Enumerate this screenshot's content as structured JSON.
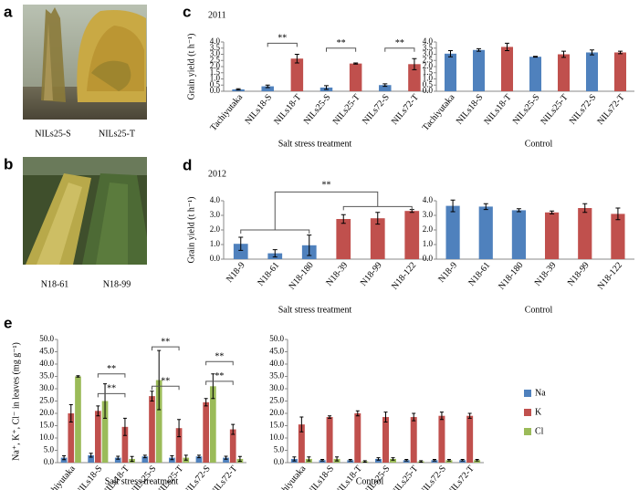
{
  "panels": {
    "a": {
      "label": "a",
      "captions": [
        "NILs25-S",
        "NILs25-T"
      ]
    },
    "b": {
      "label": "b",
      "captions": [
        "N18-61",
        "N18-99"
      ]
    },
    "c": {
      "label": "c"
    },
    "d": {
      "label": "d"
    },
    "e": {
      "label": "e"
    }
  },
  "chart_data": [
    {
      "type": "bar",
      "title": "2011",
      "ylabel": "Grain yield (t h⁻¹)",
      "xlabel": "Salt stress treatment",
      "categories": [
        "Tachiyutaka",
        "NILs18-S",
        "NILs18-T",
        "NILs25-S",
        "NILs25-T",
        "NILs72-S",
        "NILs72-T"
      ],
      "values": [
        0.15,
        0.4,
        2.65,
        0.3,
        2.25,
        0.5,
        2.2
      ],
      "errors": [
        0.05,
        0.1,
        0.35,
        0.15,
        0.05,
        0.1,
        0.45
      ],
      "colors": [
        "#4f81bd",
        "#4f81bd",
        "#c0504d",
        "#4f81bd",
        "#c0504d",
        "#4f81bd",
        "#c0504d"
      ],
      "ylim": [
        0,
        4
      ],
      "yticks": [
        {
          "value": 0,
          "label": "0.0"
        },
        0.5,
        {
          "value": 1,
          "label": "1.0"
        },
        1.5,
        {
          "value": 2,
          "label": "2.0"
        },
        2.5,
        {
          "value": 3,
          "label": "3.0"
        },
        3.5,
        {
          "value": 4,
          "label": "4.0"
        }
      ],
      "annotations": [
        "**",
        "**",
        "**"
      ]
    },
    {
      "type": "bar",
      "xlabel": "Control",
      "categories": [
        "Tachiyutaka",
        "NILs18-S",
        "NILs18-T",
        "NILs25-S",
        "NILs25-T",
        "NILs72-S",
        "NILs72-T"
      ],
      "values": [
        3.05,
        3.35,
        3.6,
        2.8,
        3.0,
        3.15,
        3.15
      ],
      "errors": [
        0.25,
        0.1,
        0.3,
        0.03,
        0.25,
        0.2,
        0.1
      ],
      "colors": [
        "#4f81bd",
        "#4f81bd",
        "#c0504d",
        "#4f81bd",
        "#c0504d",
        "#4f81bd",
        "#c0504d"
      ],
      "ylim": [
        0,
        4
      ],
      "yticks": [
        {
          "value": 0,
          "label": "0.0"
        },
        0.5,
        {
          "value": 1,
          "label": "1.0"
        },
        1.5,
        {
          "value": 2,
          "label": "2.0"
        },
        2.5,
        {
          "value": 3,
          "label": "3.0"
        },
        3.5,
        {
          "value": 4,
          "label": "4.0"
        }
      ]
    },
    {
      "type": "bar",
      "title": "2012",
      "ylabel": "Grain yield (t h⁻¹)",
      "xlabel": "Salt stress treatment",
      "categories": [
        "N18-9",
        "N18-61",
        "N18-180",
        "N18-39",
        "N18-99",
        "N18-122"
      ],
      "values": [
        1.05,
        0.4,
        0.95,
        2.75,
        2.8,
        3.3
      ],
      "errors": [
        0.45,
        0.25,
        0.7,
        0.3,
        0.4,
        0.1
      ],
      "colors": [
        "#4f81bd",
        "#4f81bd",
        "#4f81bd",
        "#c0504d",
        "#c0504d",
        "#c0504d"
      ],
      "ylim": [
        0,
        4
      ],
      "yticks": [
        {
          "value": 0,
          "label": "0.0"
        },
        {
          "value": 1,
          "label": "1.0"
        },
        {
          "value": 2,
          "label": "2.0"
        },
        {
          "value": 3,
          "label": "3.0"
        },
        {
          "value": 4,
          "label": "4.0"
        }
      ],
      "annotations": [
        "**"
      ]
    },
    {
      "type": "bar",
      "xlabel": "Control",
      "categories": [
        "N18-9",
        "N18-61",
        "N18-180",
        "N18-39",
        "N18-99",
        "N18-122"
      ],
      "values": [
        3.65,
        3.6,
        3.35,
        3.2,
        3.5,
        3.1
      ],
      "errors": [
        0.4,
        0.2,
        0.1,
        0.1,
        0.3,
        0.4
      ],
      "colors": [
        "#4f81bd",
        "#4f81bd",
        "#4f81bd",
        "#c0504d",
        "#c0504d",
        "#c0504d"
      ],
      "ylim": [
        0,
        4
      ],
      "yticks": [
        {
          "value": 0,
          "label": "0.0"
        },
        {
          "value": 1,
          "label": "1.0"
        },
        {
          "value": 2,
          "label": "2.0"
        },
        {
          "value": 3,
          "label": "3.0"
        },
        {
          "value": 4,
          "label": "4.0"
        }
      ]
    },
    {
      "type": "bar",
      "ylabel": "Na⁺, K⁺, Cl⁻ in leaves (mg g⁻¹)",
      "xlabel": "Salt stress treatment",
      "categories": [
        "Tachiyutaka",
        "NILs18-S",
        "NILs18-T",
        "NILs25-S",
        "NILs25-T",
        "NILs72-S",
        "NILs72-T"
      ],
      "series": [
        {
          "name": "Na",
          "color": "#4f81bd",
          "values": [
            2,
            3,
            2,
            2.5,
            2,
            2.5,
            2
          ],
          "errors": [
            0.8,
            0.8,
            0.6,
            0.5,
            0.8,
            0.5,
            0.6
          ]
        },
        {
          "name": "K",
          "color": "#c0504d",
          "values": [
            20,
            21,
            14.5,
            27,
            14,
            24.5,
            13.5
          ],
          "errors": [
            3.5,
            2,
            3.5,
            2,
            3.5,
            1.5,
            2
          ]
        },
        {
          "name": "Cl",
          "color": "#9bbb59",
          "values": [
            35,
            25,
            1.5,
            33.5,
            2,
            31,
            1.5
          ],
          "errors": [
            0.3,
            7,
            1,
            12,
            1,
            5,
            1
          ]
        }
      ],
      "ylim": [
        0,
        50
      ],
      "yticks": [
        {
          "value": 0,
          "label": "0.0"
        },
        {
          "value": 5,
          "label": "5.0"
        },
        {
          "value": 10,
          "label": "10.0"
        },
        {
          "value": 15,
          "label": "15.0"
        },
        {
          "value": 20,
          "label": "20.0"
        },
        {
          "value": 25,
          "label": "25.0"
        },
        {
          "value": 30,
          "label": "30.0"
        },
        {
          "value": 35,
          "label": "35.0"
        },
        {
          "value": 40,
          "label": "40.0"
        },
        {
          "value": 45,
          "label": "45.0"
        },
        {
          "value": 50,
          "label": "50.0"
        }
      ],
      "annotations": [
        "**",
        "**",
        "**",
        "**",
        "**",
        "**"
      ]
    },
    {
      "type": "bar",
      "xlabel": "Control",
      "legend": "right",
      "categories": [
        "Tachiyutaka",
        "NILs18-S",
        "NILs18-T",
        "NILs25-S",
        "NILs25-T",
        "NILs72-S",
        "NILs72-T"
      ],
      "series": [
        {
          "name": "Na",
          "color": "#4f81bd",
          "values": [
            1.5,
            1,
            1,
            1.5,
            1,
            1,
            1
          ],
          "errors": [
            0.8,
            0.3,
            0.3,
            0.5,
            0.3,
            0.3,
            0.3
          ]
        },
        {
          "name": "K",
          "color": "#c0504d",
          "values": [
            15.5,
            18.5,
            20,
            18.5,
            18.5,
            19,
            19
          ],
          "errors": [
            3,
            0.5,
            1,
            2,
            1.5,
            1.5,
            1
          ]
        },
        {
          "name": "Cl",
          "color": "#9bbb59",
          "values": [
            1.5,
            1.5,
            0.5,
            1.5,
            0.5,
            1,
            1
          ],
          "errors": [
            0.8,
            0.8,
            0.3,
            0.5,
            0.3,
            0.3,
            0.3
          ]
        }
      ],
      "ylim": [
        0,
        50
      ],
      "yticks": [
        {
          "value": 0,
          "label": "0.0"
        },
        {
          "value": 5,
          "label": "5.0"
        },
        {
          "value": 10,
          "label": "10.0"
        },
        {
          "value": 15,
          "label": "15.0"
        },
        {
          "value": 20,
          "label": "20.0"
        },
        {
          "value": 25,
          "label": "25.0"
        },
        {
          "value": 30,
          "label": "30.0"
        },
        {
          "value": 35,
          "label": "35.0"
        },
        {
          "value": 40,
          "label": "40.0"
        },
        {
          "value": 45,
          "label": "45.0"
        },
        {
          "value": 50,
          "label": "50.0"
        }
      ]
    }
  ]
}
